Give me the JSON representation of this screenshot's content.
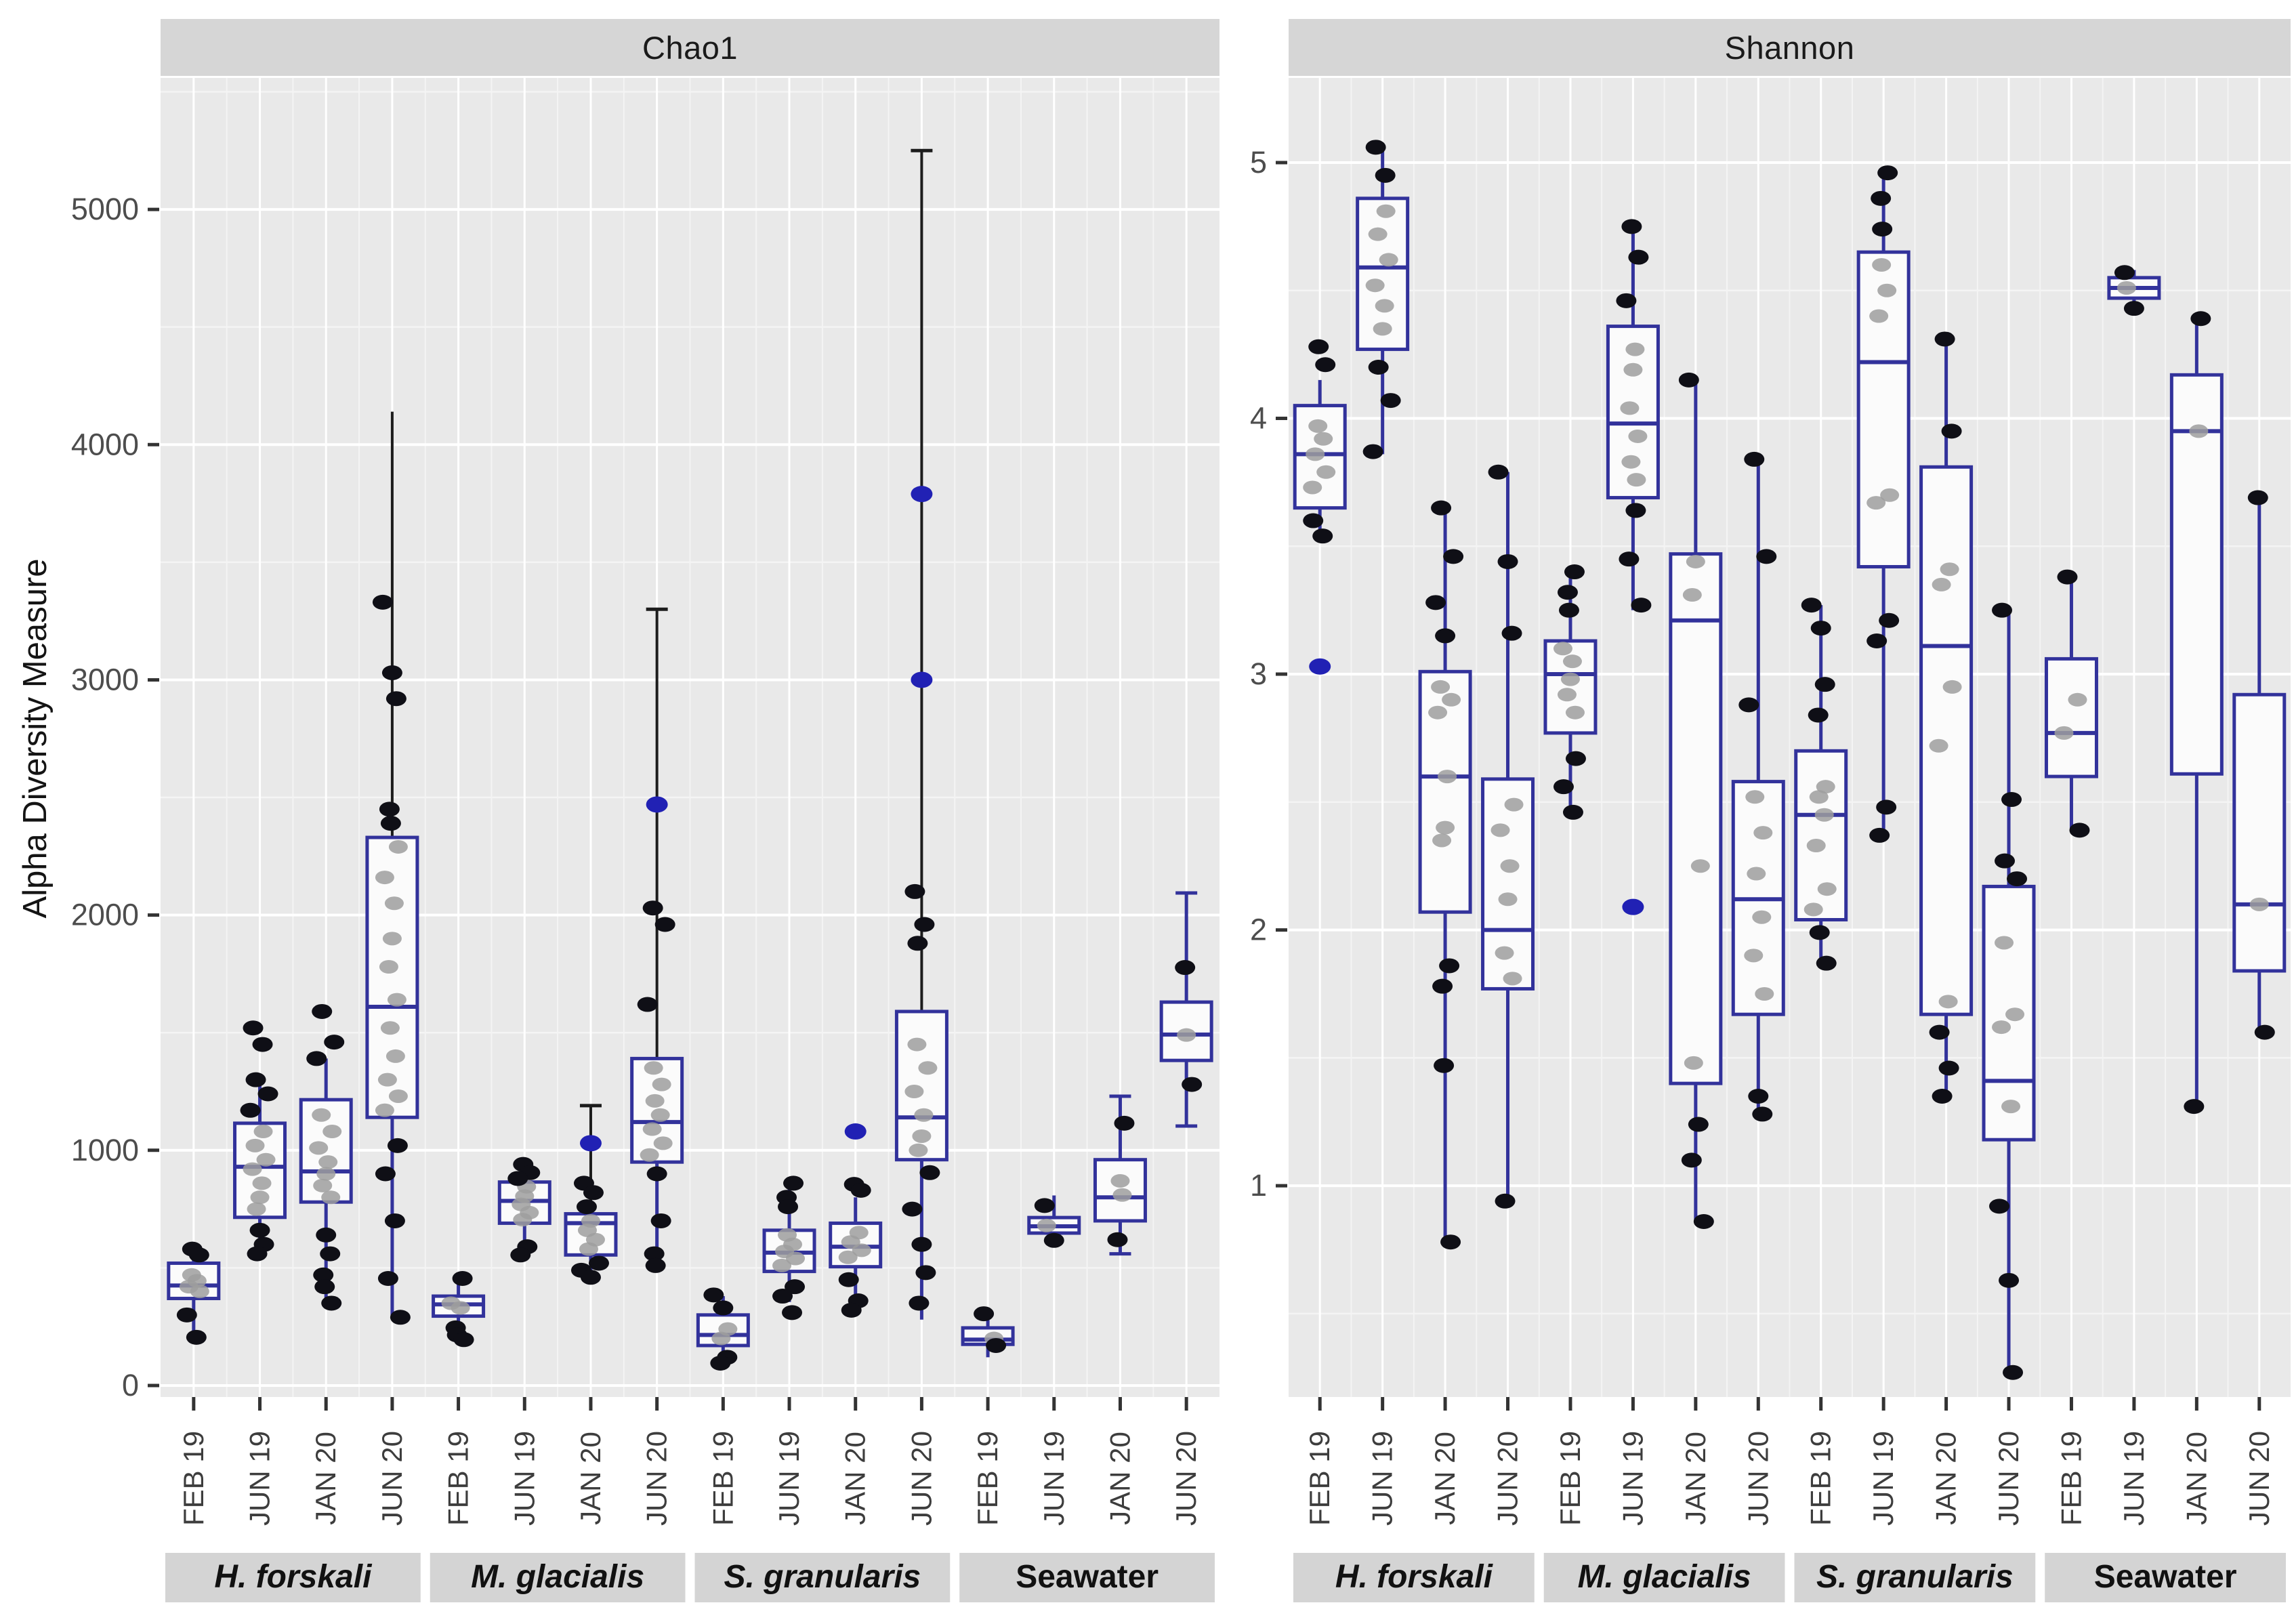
{
  "figure": {
    "y_axis_title": "Alpha Diversity Measure"
  },
  "colors": {
    "page_bg": "#ffffff",
    "panel_bg": "#e9e9e9",
    "strip_bg": "#d6d6d6",
    "group_strip_bg": "#d4d4d4",
    "grid_major": "#ffffff",
    "grid_minor": "#f4f4f4",
    "box_stroke": "#32329b",
    "box_fill": "#fbfbfb",
    "median": "#32329b",
    "whisker": "#32329b",
    "dark_whisker": "#1c1c1c",
    "point_black": "#0f0f16",
    "point_gray": "#9d9d9d",
    "point_blue": "#2121b4",
    "tick_mark": "#333333",
    "tick_label": "#4d4d4d",
    "strip_text": "#1a1a1a"
  },
  "chart_data": {
    "type": "boxplot",
    "x_categories": [
      "FEB 19",
      "JUN 19",
      "JAN 20",
      "JUN 20"
    ],
    "groups": [
      {
        "label": "H. forskali",
        "italic": true
      },
      {
        "label": "M. glacialis",
        "italic": true
      },
      {
        "label": "S. granularis",
        "italic": true
      },
      {
        "label": "Seawater",
        "italic": false
      }
    ],
    "legend": "none",
    "facets": [
      {
        "title": "Chao1",
        "ylim": [
          -49,
          5559
        ],
        "yticks": [
          0,
          1000,
          2000,
          3000,
          4000,
          5000
        ],
        "minor_step": 500,
        "boxes": [
          {
            "group": "H. forskali",
            "time": "FEB 19",
            "q1": 370,
            "median": 425,
            "q3": 520,
            "whisker_low": 200,
            "whisker_high": 560,
            "outliers_blue": [],
            "points_black": [
              580,
              555,
              300,
              205
            ],
            "points_gray": [
              470,
              445,
              420,
              400
            ]
          },
          {
            "group": "H. forskali",
            "time": "JUN 19",
            "q1": 715,
            "median": 930,
            "q3": 1115,
            "whisker_low": 555,
            "whisker_high": 1300,
            "outliers_blue": [],
            "points_black": [
              1520,
              1450,
              1300,
              1240,
              1170,
              660,
              600,
              560
            ],
            "points_gray": [
              1080,
              1020,
              960,
              920,
              860,
              800,
              750
            ]
          },
          {
            "group": "H. forskali",
            "time": "JAN 20",
            "q1": 780,
            "median": 910,
            "q3": 1215,
            "whisker_low": 345,
            "whisker_high": 1390,
            "outliers_blue": [],
            "points_black": [
              1590,
              1460,
              1390,
              640,
              560,
              470,
              420,
              350
            ],
            "points_gray": [
              1150,
              1080,
              1010,
              950,
              900,
              850,
              800
            ]
          },
          {
            "group": "H. forskali",
            "time": "JUN 20",
            "q1": 1140,
            "median": 1610,
            "q3": 2330,
            "whisker_low": 285,
            "whisker_high": 4140,
            "dark_hi": true,
            "outliers_blue": [],
            "points_black": [
              3330,
              3030,
              2920,
              2450,
              2390,
              1020,
              900,
              700,
              455,
              290
            ],
            "points_gray": [
              2290,
              2160,
              2050,
              1900,
              1780,
              1640,
              1520,
              1400,
              1300,
              1230,
              1170
            ]
          },
          {
            "group": "M. glacialis",
            "time": "FEB 19",
            "q1": 295,
            "median": 345,
            "q3": 380,
            "whisker_low": 215,
            "whisker_high": 450,
            "outliers_blue": [],
            "points_black": [
              455,
              245,
              215,
              195
            ],
            "points_gray": [
              350,
              330
            ]
          },
          {
            "group": "M. glacialis",
            "time": "JUN 19",
            "q1": 690,
            "median": 785,
            "q3": 865,
            "whisker_low": 570,
            "whisker_high": 945,
            "outliers_blue": [],
            "points_black": [
              940,
              905,
              880,
              590,
              555
            ],
            "points_gray": [
              845,
              805,
              770,
              735,
              705
            ]
          },
          {
            "group": "M. glacialis",
            "time": "JAN 20",
            "q1": 555,
            "median": 690,
            "q3": 730,
            "whisker_low": 450,
            "whisker_high": 1190,
            "dark_hi": true,
            "cap_hi": true,
            "outliers_blue": [
              1030
            ],
            "points_black": [
              860,
              820,
              760,
              520,
              490,
              460
            ],
            "points_gray": [
              700,
              660,
              620,
              580
            ]
          },
          {
            "group": "M. glacialis",
            "time": "JUN 20",
            "q1": 950,
            "median": 1120,
            "q3": 1390,
            "whisker_low": 505,
            "whisker_high": 3300,
            "dark_hi": true,
            "cap_hi": true,
            "outliers_blue": [
              2470
            ],
            "points_black": [
              2030,
              1960,
              1620,
              900,
              700,
              560,
              510
            ],
            "points_gray": [
              1350,
              1280,
              1210,
              1150,
              1090,
              1030,
              980
            ]
          },
          {
            "group": "S. granularis",
            "time": "FEB 19",
            "q1": 170,
            "median": 215,
            "q3": 300,
            "whisker_low": 90,
            "whisker_high": 380,
            "outliers_blue": [],
            "points_black": [
              385,
              330,
              120,
              95
            ],
            "points_gray": [
              240,
              200
            ]
          },
          {
            "group": "S. granularis",
            "time": "JUN 19",
            "q1": 485,
            "median": 565,
            "q3": 660,
            "whisker_low": 355,
            "whisker_high": 870,
            "outliers_blue": [],
            "points_black": [
              860,
              800,
              760,
              420,
              380,
              310
            ],
            "points_gray": [
              640,
              600,
              570,
              540,
              510
            ]
          },
          {
            "group": "S. granularis",
            "time": "JAN 20",
            "q1": 505,
            "median": 590,
            "q3": 690,
            "whisker_low": 310,
            "whisker_high": 800,
            "outliers_blue": [
              1080
            ],
            "points_black": [
              855,
              830,
              450,
              360,
              320
            ],
            "points_gray": [
              650,
              610,
              575,
              545
            ]
          },
          {
            "group": "S. granularis",
            "time": "JUN 20",
            "q1": 960,
            "median": 1140,
            "q3": 1590,
            "whisker_low": 280,
            "whisker_high": 5250,
            "dark_hi": true,
            "cap_hi": true,
            "outliers_blue": [
              3790,
              3000
            ],
            "points_black": [
              2100,
              1960,
              1880,
              905,
              750,
              600,
              480,
              350
            ],
            "points_gray": [
              1450,
              1350,
              1250,
              1150,
              1060,
              1000
            ]
          },
          {
            "group": "Seawater",
            "time": "FEB 19",
            "q1": 175,
            "median": 195,
            "q3": 245,
            "whisker_low": 120,
            "whisker_high": 290,
            "outliers_blue": [],
            "points_black": [
              305,
              170
            ],
            "points_gray": [
              200
            ]
          },
          {
            "group": "Seawater",
            "time": "JUN 19",
            "q1": 648,
            "median": 677,
            "q3": 714,
            "whisker_low": 600,
            "whisker_high": 808,
            "outliers_blue": [],
            "points_black": [
              765,
              617
            ],
            "points_gray": [
              680
            ]
          },
          {
            "group": "Seawater",
            "time": "JAN 20",
            "q1": 700,
            "median": 800,
            "q3": 960,
            "whisker_low": 560,
            "whisker_high": 1230,
            "cap_hi": true,
            "cap_lo": true,
            "outliers_blue": [],
            "points_black": [
              1115,
              620
            ],
            "points_gray": [
              810,
              870
            ]
          },
          {
            "group": "Seawater",
            "time": "JUN 20",
            "q1": 1382,
            "median": 1492,
            "q3": 1630,
            "whisker_low": 1103,
            "whisker_high": 2094,
            "cap_hi": true,
            "cap_lo": true,
            "outliers_blue": [],
            "points_black": [
              1777,
              1280
            ],
            "points_gray": [
              1490
            ]
          }
        ]
      },
      {
        "title": "Shannon",
        "ylim": [
          0.174,
          5.331
        ],
        "yticks": [
          1,
          2,
          3,
          4,
          5
        ],
        "minor_step": 0.5,
        "boxes": [
          {
            "group": "H. forskali",
            "time": "FEB 19",
            "q1": 3.65,
            "median": 3.86,
            "q3": 4.05,
            "whisker_low": 3.53,
            "whisker_high": 4.15,
            "outliers_blue": [
              3.03
            ],
            "points_black": [
              4.28,
              4.21,
              3.6,
              3.54
            ],
            "points_gray": [
              3.97,
              3.92,
              3.86,
              3.79,
              3.73
            ]
          },
          {
            "group": "H. forskali",
            "time": "JUN 19",
            "q1": 4.27,
            "median": 4.59,
            "q3": 4.86,
            "whisker_low": 3.86,
            "whisker_high": 5.06,
            "outliers_blue": [],
            "points_black": [
              5.06,
              4.95,
              4.2,
              4.07,
              3.87
            ],
            "points_gray": [
              4.81,
              4.72,
              4.62,
              4.52,
              4.44,
              4.35
            ]
          },
          {
            "group": "H. forskali",
            "time": "JAN 20",
            "q1": 2.07,
            "median": 2.6,
            "q3": 3.01,
            "whisker_low": 0.78,
            "whisker_high": 3.65,
            "outliers_blue": [],
            "points_black": [
              3.65,
              3.46,
              3.28,
              3.15,
              1.86,
              1.78,
              1.47,
              0.78
            ],
            "points_gray": [
              2.95,
              2.9,
              2.85,
              2.6,
              2.4,
              2.35
            ]
          },
          {
            "group": "H. forskali",
            "time": "JUN 20",
            "q1": 1.77,
            "median": 2.0,
            "q3": 2.59,
            "whisker_low": 0.94,
            "whisker_high": 3.79,
            "outliers_blue": [],
            "points_black": [
              3.79,
              3.44,
              3.16,
              0.94
            ],
            "points_gray": [
              2.49,
              2.39,
              2.25,
              2.12,
              1.91,
              1.81
            ]
          },
          {
            "group": "M. glacialis",
            "time": "FEB 19",
            "q1": 2.77,
            "median": 3.0,
            "q3": 3.13,
            "whisker_low": 2.44,
            "whisker_high": 3.4,
            "outliers_blue": [],
            "points_black": [
              3.4,
              3.32,
              3.25,
              2.67,
              2.56,
              2.46
            ],
            "points_gray": [
              3.1,
              3.05,
              2.98,
              2.92,
              2.85
            ]
          },
          {
            "group": "M. glacialis",
            "time": "JUN 19",
            "q1": 3.69,
            "median": 3.98,
            "q3": 4.36,
            "whisker_low": 3.25,
            "whisker_high": 4.75,
            "outliers_blue": [
              2.09
            ],
            "points_black": [
              4.75,
              4.63,
              4.46,
              3.64,
              3.45,
              3.27
            ],
            "points_gray": [
              4.27,
              4.19,
              4.04,
              3.93,
              3.83,
              3.76
            ]
          },
          {
            "group": "M. glacialis",
            "time": "JAN 20",
            "q1": 1.4,
            "median": 3.21,
            "q3": 3.47,
            "whisker_low": 0.86,
            "whisker_high": 4.15,
            "outliers_blue": [],
            "points_black": [
              4.15,
              1.24,
              1.1,
              0.86
            ],
            "points_gray": [
              3.44,
              3.31,
              2.25,
              1.48
            ]
          },
          {
            "group": "M. glacialis",
            "time": "JUN 20",
            "q1": 1.67,
            "median": 2.12,
            "q3": 2.58,
            "whisker_low": 1.28,
            "whisker_high": 3.84,
            "outliers_blue": [],
            "points_black": [
              3.84,
              3.46,
              2.88,
              1.35,
              1.28
            ],
            "points_gray": [
              2.52,
              2.38,
              2.22,
              2.05,
              1.9,
              1.75
            ]
          },
          {
            "group": "S. granularis",
            "time": "FEB 19",
            "q1": 2.04,
            "median": 2.45,
            "q3": 2.7,
            "whisker_low": 1.87,
            "whisker_high": 3.27,
            "outliers_blue": [],
            "points_black": [
              3.27,
              3.18,
              2.96,
              2.84,
              1.99,
              1.87
            ],
            "points_gray": [
              2.56,
              2.52,
              2.45,
              2.33,
              2.16,
              2.08
            ]
          },
          {
            "group": "S. granularis",
            "time": "JUN 19",
            "q1": 3.42,
            "median": 4.22,
            "q3": 4.65,
            "whisker_low": 2.36,
            "whisker_high": 4.96,
            "outliers_blue": [],
            "points_black": [
              4.96,
              4.86,
              4.74,
              3.21,
              3.13,
              2.48,
              2.37
            ],
            "points_gray": [
              4.6,
              4.5,
              4.4,
              3.7,
              3.67
            ]
          },
          {
            "group": "S. granularis",
            "time": "JAN 20",
            "q1": 1.67,
            "median": 3.11,
            "q3": 3.81,
            "whisker_low": 1.35,
            "whisker_high": 4.31,
            "outliers_blue": [],
            "points_black": [
              4.31,
              3.95,
              1.6,
              1.46,
              1.35
            ],
            "points_gray": [
              3.41,
              3.35,
              2.95,
              2.72,
              1.72
            ]
          },
          {
            "group": "S. granularis",
            "time": "JUN 20",
            "q1": 1.18,
            "median": 1.41,
            "q3": 2.17,
            "whisker_low": 0.27,
            "whisker_high": 3.25,
            "outliers_blue": [],
            "points_black": [
              3.25,
              2.51,
              2.27,
              2.2,
              0.92,
              0.63,
              0.27
            ],
            "points_gray": [
              1.95,
              1.67,
              1.62,
              1.31
            ]
          },
          {
            "group": "Seawater",
            "time": "FEB 19",
            "q1": 2.6,
            "median": 2.77,
            "q3": 3.06,
            "whisker_low": 2.39,
            "whisker_high": 3.38,
            "outliers_blue": [],
            "points_black": [
              3.38,
              2.39
            ],
            "points_gray": [
              2.9,
              2.77
            ]
          },
          {
            "group": "Seawater",
            "time": "JUN 19",
            "q1": 4.47,
            "median": 4.51,
            "q3": 4.55,
            "whisker_low": 4.44,
            "whisker_high": 4.58,
            "outliers_blue": [],
            "points_black": [
              4.57,
              4.43
            ],
            "points_gray": [
              4.51
            ]
          },
          {
            "group": "Seawater",
            "time": "JAN 20",
            "q1": 2.61,
            "median": 3.95,
            "q3": 4.17,
            "whisker_low": 1.31,
            "whisker_high": 4.39,
            "outliers_blue": [],
            "points_black": [
              4.39,
              1.31
            ],
            "points_gray": [
              3.95
            ]
          },
          {
            "group": "Seawater",
            "time": "JUN 20",
            "q1": 1.84,
            "median": 2.1,
            "q3": 2.92,
            "whisker_low": 1.58,
            "whisker_high": 3.69,
            "outliers_blue": [],
            "points_black": [
              3.69,
              1.6
            ],
            "points_gray": [
              2.1
            ]
          }
        ]
      }
    ]
  }
}
